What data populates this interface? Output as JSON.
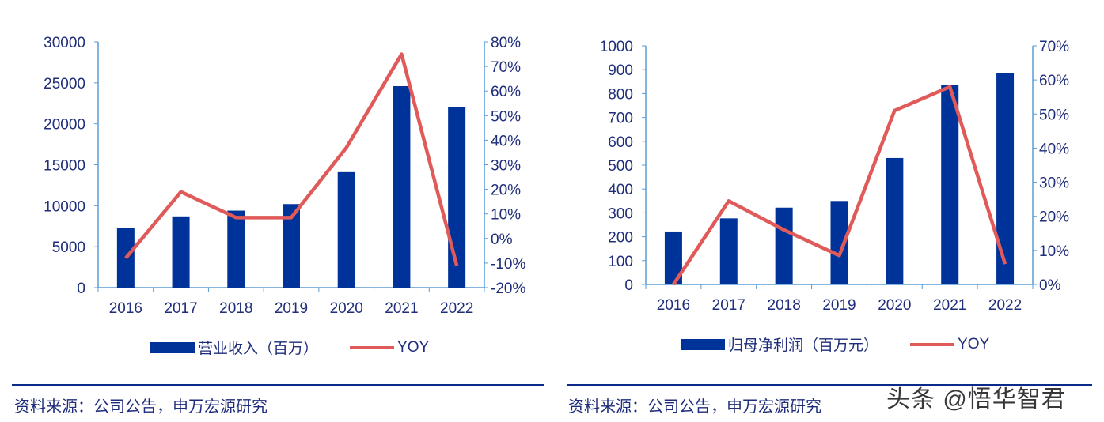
{
  "colors": {
    "bar": "#003399",
    "line": "#e05a5a",
    "axis": "#5b9bd5",
    "text": "#1f2d7a"
  },
  "chart_data": [
    {
      "type": "bar+line",
      "categories": [
        "2016",
        "2017",
        "2018",
        "2019",
        "2020",
        "2021",
        "2022"
      ],
      "series": [
        {
          "name": "营业收入（百万）",
          "type": "bar",
          "axis": "left",
          "values": [
            7300,
            8700,
            9400,
            10200,
            14100,
            24600,
            22000
          ]
        },
        {
          "name": "YOY",
          "type": "line",
          "axis": "right",
          "values": [
            -8,
            19,
            8.5,
            8.5,
            37,
            75,
            -11
          ]
        }
      ],
      "ylim": [
        0,
        30000
      ],
      "yticks": [
        "0",
        "5000",
        "10000",
        "15000",
        "20000",
        "25000",
        "30000"
      ],
      "y2lim": [
        -20,
        80
      ],
      "y2ticks": [
        "-20%",
        "-10%",
        "0%",
        "10%",
        "20%",
        "30%",
        "40%",
        "50%",
        "60%",
        "70%",
        "80%"
      ],
      "grid": false,
      "legend": "bottom"
    },
    {
      "type": "bar+line",
      "categories": [
        "2016",
        "2017",
        "2018",
        "2019",
        "2020",
        "2021",
        "2022"
      ],
      "series": [
        {
          "name": "归母净利润（百万元）",
          "type": "bar",
          "axis": "left",
          "values": [
            222,
            277,
            322,
            350,
            530,
            835,
            885
          ]
        },
        {
          "name": "YOY",
          "type": "line",
          "axis": "right",
          "values": [
            0,
            24.5,
            16,
            8.5,
            51,
            58,
            6
          ]
        }
      ],
      "ylim": [
        0,
        1000
      ],
      "yticks": [
        "0",
        "100",
        "200",
        "300",
        "400",
        "500",
        "600",
        "700",
        "800",
        "900",
        "1000"
      ],
      "y2lim": [
        0,
        70
      ],
      "y2ticks": [
        "0%",
        "10%",
        "20%",
        "30%",
        "40%",
        "50%",
        "60%",
        "70%"
      ],
      "grid": false,
      "legend": "bottom"
    }
  ],
  "sources": [
    "资料来源：公司公告，申万宏源研究",
    "资料来源：公司公告，申万宏源研究"
  ],
  "watermark": "头条 @悟华智君"
}
